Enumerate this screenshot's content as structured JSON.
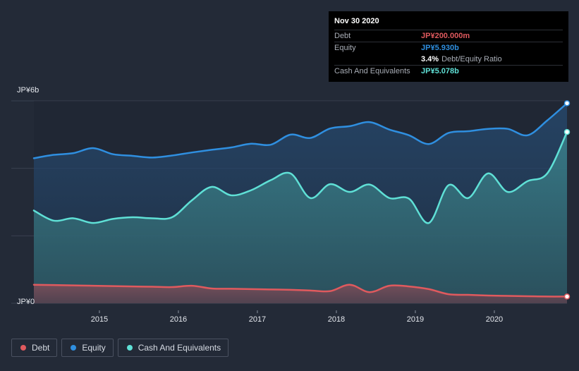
{
  "tooltip": {
    "date": "Nov 30 2020",
    "debt_label": "Debt",
    "debt_value": "JP¥200.000m",
    "equity_label": "Equity",
    "equity_value": "JP¥5.930b",
    "ratio_value": "3.4%",
    "ratio_label": "Debt/Equity Ratio",
    "cash_label": "Cash And Equivalents",
    "cash_value": "JP¥5.078b"
  },
  "legend": [
    {
      "label": "Debt",
      "color": "#e05a5e"
    },
    {
      "label": "Equity",
      "color": "#2f8fe0"
    },
    {
      "label": "Cash And Equivalents",
      "color": "#5fe0d6"
    }
  ],
  "colors": {
    "debt": "#e05a5e",
    "equity": "#2f8fe0",
    "cash": "#5fe0d6",
    "background": "#232a37",
    "grid": "#3a4150"
  },
  "chart_data": {
    "type": "area",
    "ylim": [
      0,
      6
    ],
    "xlim": [
      2014.17,
      2020.92
    ],
    "y_ticks": [
      {
        "value": 6,
        "label": "JP¥6b"
      },
      {
        "value": 0,
        "label": "JP¥0"
      }
    ],
    "x_ticks": [
      {
        "value": 2015,
        "label": "2015"
      },
      {
        "value": 2016,
        "label": "2016"
      },
      {
        "value": 2017,
        "label": "2017"
      },
      {
        "value": 2018,
        "label": "2018"
      },
      {
        "value": 2019,
        "label": "2019"
      },
      {
        "value": 2020,
        "label": "2020"
      }
    ],
    "series": [
      {
        "name": "Equity",
        "points": [
          [
            2014.17,
            4.3
          ],
          [
            2014.42,
            4.4
          ],
          [
            2014.67,
            4.45
          ],
          [
            2014.92,
            4.6
          ],
          [
            2015.17,
            4.42
          ],
          [
            2015.42,
            4.37
          ],
          [
            2015.67,
            4.32
          ],
          [
            2015.92,
            4.38
          ],
          [
            2016.17,
            4.47
          ],
          [
            2016.42,
            4.55
          ],
          [
            2016.67,
            4.62
          ],
          [
            2016.92,
            4.73
          ],
          [
            2017.17,
            4.7
          ],
          [
            2017.42,
            5.0
          ],
          [
            2017.67,
            4.9
          ],
          [
            2017.92,
            5.18
          ],
          [
            2018.17,
            5.25
          ],
          [
            2018.42,
            5.37
          ],
          [
            2018.67,
            5.15
          ],
          [
            2018.92,
            4.98
          ],
          [
            2019.17,
            4.72
          ],
          [
            2019.42,
            5.05
          ],
          [
            2019.67,
            5.1
          ],
          [
            2019.92,
            5.17
          ],
          [
            2020.17,
            5.17
          ],
          [
            2020.42,
            4.98
          ],
          [
            2020.67,
            5.42
          ],
          [
            2020.92,
            5.93
          ]
        ]
      },
      {
        "name": "Cash And Equivalents",
        "points": [
          [
            2014.17,
            2.75
          ],
          [
            2014.42,
            2.45
          ],
          [
            2014.67,
            2.52
          ],
          [
            2014.92,
            2.38
          ],
          [
            2015.17,
            2.5
          ],
          [
            2015.42,
            2.55
          ],
          [
            2015.67,
            2.52
          ],
          [
            2015.92,
            2.55
          ],
          [
            2016.17,
            3.05
          ],
          [
            2016.42,
            3.45
          ],
          [
            2016.67,
            3.2
          ],
          [
            2016.92,
            3.35
          ],
          [
            2017.17,
            3.65
          ],
          [
            2017.42,
            3.85
          ],
          [
            2017.67,
            3.12
          ],
          [
            2017.92,
            3.53
          ],
          [
            2018.17,
            3.3
          ],
          [
            2018.42,
            3.52
          ],
          [
            2018.67,
            3.12
          ],
          [
            2018.92,
            3.1
          ],
          [
            2019.17,
            2.38
          ],
          [
            2019.42,
            3.5
          ],
          [
            2019.67,
            3.12
          ],
          [
            2019.92,
            3.85
          ],
          [
            2020.17,
            3.3
          ],
          [
            2020.42,
            3.62
          ],
          [
            2020.67,
            3.85
          ],
          [
            2020.92,
            5.078
          ]
        ]
      },
      {
        "name": "Debt",
        "points": [
          [
            2014.17,
            0.55
          ],
          [
            2014.42,
            0.54
          ],
          [
            2014.67,
            0.53
          ],
          [
            2014.92,
            0.52
          ],
          [
            2015.17,
            0.51
          ],
          [
            2015.42,
            0.5
          ],
          [
            2015.67,
            0.49
          ],
          [
            2015.92,
            0.48
          ],
          [
            2016.17,
            0.52
          ],
          [
            2016.42,
            0.44
          ],
          [
            2016.67,
            0.43
          ],
          [
            2016.92,
            0.42
          ],
          [
            2017.17,
            0.41
          ],
          [
            2017.42,
            0.4
          ],
          [
            2017.67,
            0.38
          ],
          [
            2017.92,
            0.36
          ],
          [
            2018.17,
            0.55
          ],
          [
            2018.42,
            0.33
          ],
          [
            2018.67,
            0.52
          ],
          [
            2018.92,
            0.5
          ],
          [
            2019.17,
            0.42
          ],
          [
            2019.42,
            0.27
          ],
          [
            2019.67,
            0.25
          ],
          [
            2019.92,
            0.23
          ],
          [
            2020.17,
            0.22
          ],
          [
            2020.42,
            0.21
          ],
          [
            2020.67,
            0.2
          ],
          [
            2020.92,
            0.2
          ]
        ]
      }
    ]
  }
}
